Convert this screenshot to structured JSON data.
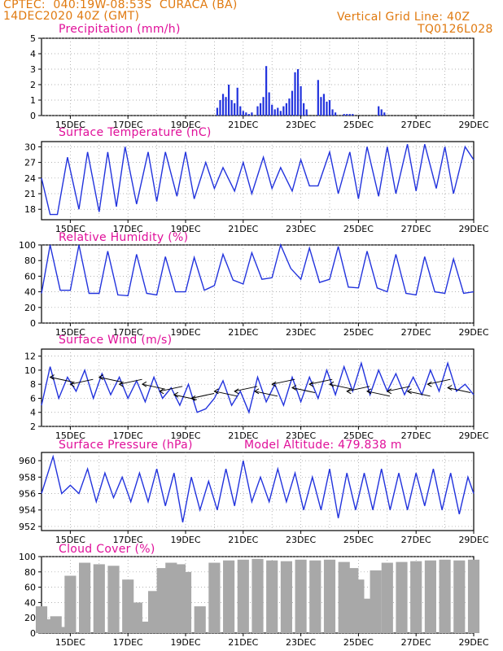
{
  "header": {
    "line1_left": "CPTEC:  040:19W-08:53S  CURACA (BA)",
    "line1_right": "Vertical Grid Line: 40Z",
    "line2_left": "14DEC2020 40Z (GMT)",
    "line2_right": "TQ0126L028",
    "model_altitude": "Model Altitude: 479.838 m"
  },
  "colors": {
    "header": "#e07a10",
    "title": "#e0109a",
    "line": "#2233dd",
    "bars": "#2233dd",
    "cloud": "#a8a8a8",
    "arrows": "#000000"
  },
  "x_tick_labels": [
    "15DEC",
    "17DEC",
    "19DEC",
    "21DEC",
    "23DEC",
    "25DEC",
    "27DEC",
    "29DEC"
  ],
  "chart_data": [
    {
      "type": "bar",
      "title": "Precipitation (mm/h)",
      "ylim": [
        0,
        5
      ],
      "yticks": [
        "0",
        "1",
        "2",
        "3",
        "4",
        "5"
      ],
      "x_days": [
        0,
        15
      ],
      "series": [
        {
          "x": [
            6.1,
            6.2,
            6.3,
            6.4,
            6.5,
            6.6,
            6.7,
            6.8,
            6.9,
            7.0,
            7.1,
            7.2,
            7.3,
            7.5,
            7.6,
            7.7,
            7.8,
            7.9,
            8.0,
            8.1,
            8.2,
            8.3,
            8.4,
            8.5,
            8.6,
            8.7,
            8.8,
            8.9,
            9.0,
            9.1,
            9.2,
            9.6,
            9.7,
            9.8,
            9.9,
            10.0,
            10.1,
            10.2,
            10.5,
            10.6,
            10.7,
            10.8,
            11.7,
            11.8,
            11.9
          ],
          "values": [
            0.5,
            1.0,
            1.4,
            1.2,
            2.0,
            1.0,
            0.8,
            1.8,
            0.6,
            0.3,
            0.2,
            0.1,
            0.2,
            0.6,
            0.8,
            1.2,
            3.2,
            1.5,
            0.7,
            0.4,
            0.5,
            0.3,
            0.6,
            0.8,
            1.1,
            1.6,
            2.8,
            3.0,
            1.9,
            0.8,
            0.4,
            2.3,
            1.2,
            1.4,
            0.9,
            1.0,
            0.4,
            0.2,
            0.1,
            0.1,
            0.1,
            0.1,
            0.6,
            0.4,
            0.2
          ]
        }
      ]
    },
    {
      "type": "line",
      "title": "Surface Temperature (nC)",
      "ylim": [
        16,
        31
      ],
      "yticks": [
        "18",
        "21",
        "24",
        "27",
        "30"
      ],
      "series": [
        {
          "name": "",
          "x": [
            0,
            0.3,
            0.55,
            0.9,
            1.3,
            1.6,
            2.0,
            2.3,
            2.6,
            2.9,
            3.3,
            3.7,
            4.0,
            4.3,
            4.7,
            5.0,
            5.3,
            5.7,
            6.0,
            6.3,
            6.7,
            7.0,
            7.3,
            7.7,
            8.0,
            8.3,
            8.7,
            9.0,
            9.3,
            9.6,
            10.0,
            10.3,
            10.7,
            11.0,
            11.3,
            11.7,
            12.0,
            12.3,
            12.7,
            13.0,
            13.3,
            13.7,
            14.0,
            14.3,
            14.7,
            15.0
          ],
          "y": [
            24,
            17,
            17,
            28,
            18,
            29,
            17.5,
            29,
            18.5,
            30,
            19,
            29,
            19.5,
            29,
            20.5,
            29,
            20,
            27,
            22,
            26,
            21.5,
            27,
            21,
            28,
            22,
            26,
            21.5,
            27.5,
            22.5,
            22.5,
            29,
            21,
            29,
            20,
            30,
            20.5,
            30,
            21,
            30.5,
            21.5,
            30.5,
            22,
            30,
            21,
            30,
            27.5
          ]
        }
      ]
    },
    {
      "type": "line",
      "title": "Relative Humidity (%)",
      "ylim": [
        0,
        100
      ],
      "yticks": [
        "0",
        "20",
        "40",
        "60",
        "80",
        "100"
      ],
      "series": [
        {
          "name": "",
          "x": [
            0,
            0.3,
            0.65,
            1.0,
            1.3,
            1.65,
            2.0,
            2.3,
            2.65,
            3.0,
            3.3,
            3.65,
            4.0,
            4.3,
            4.65,
            5.0,
            5.3,
            5.65,
            6.0,
            6.3,
            6.65,
            7.0,
            7.3,
            7.65,
            8.0,
            8.3,
            8.65,
            9.0,
            9.3,
            9.65,
            10.0,
            10.3,
            10.65,
            11.0,
            11.3,
            11.65,
            12.0,
            12.3,
            12.65,
            13.0,
            13.3,
            13.65,
            14.0,
            14.3,
            14.65,
            15.0
          ],
          "y": [
            38,
            100,
            42,
            42,
            100,
            38,
            38,
            92,
            36,
            35,
            88,
            38,
            36,
            85,
            40,
            40,
            84,
            42,
            48,
            88,
            55,
            50,
            90,
            56,
            58,
            100,
            70,
            56,
            96,
            52,
            56,
            98,
            46,
            45,
            92,
            45,
            40,
            88,
            38,
            36,
            85,
            40,
            38,
            82,
            38,
            40
          ]
        }
      ]
    },
    {
      "type": "line",
      "title": "Surface Wind (m/s)",
      "ylim": [
        2,
        13
      ],
      "yticks": [
        "2",
        "4",
        "6",
        "8",
        "10",
        "12"
      ],
      "series": [
        {
          "name": "",
          "x": [
            0,
            0.3,
            0.6,
            0.9,
            1.2,
            1.5,
            1.8,
            2.1,
            2.4,
            2.7,
            3.0,
            3.3,
            3.6,
            3.9,
            4.2,
            4.5,
            4.8,
            5.1,
            5.4,
            5.7,
            6.0,
            6.3,
            6.6,
            6.9,
            7.2,
            7.5,
            7.8,
            8.1,
            8.4,
            8.7,
            9.0,
            9.3,
            9.6,
            9.9,
            10.2,
            10.5,
            10.8,
            11.1,
            11.4,
            11.7,
            12.0,
            12.3,
            12.6,
            12.9,
            13.2,
            13.5,
            13.8,
            14.1,
            14.4,
            14.7,
            15.0
          ],
          "y": [
            5,
            10.5,
            6,
            9,
            7,
            10,
            6,
            9.5,
            6.5,
            9,
            6,
            8.5,
            5.5,
            9,
            6,
            7.5,
            5,
            8,
            4,
            4.5,
            6,
            8.5,
            5,
            7,
            4,
            9,
            5.5,
            8,
            5,
            9,
            5.5,
            9,
            6,
            10,
            6.5,
            10.5,
            7,
            11,
            6.5,
            10,
            7,
            9.5,
            6.5,
            9,
            6.5,
            10,
            7,
            11,
            7,
            8,
            6.5
          ]
        }
      ],
      "wind_vectors": {
        "x": [
          0.3,
          1.0,
          2.0,
          2.7,
          3.5,
          4.1,
          4.6,
          5.2,
          6.0,
          6.7,
          7.4,
          8.0,
          8.7,
          9.3,
          10.0,
          10.6,
          11.3,
          12.0,
          12.7,
          13.4,
          14.1
        ],
        "speed": [
          9,
          8,
          9,
          8,
          8,
          7,
          6.5,
          6,
          7,
          7,
          7,
          8,
          7.5,
          8,
          8,
          7,
          7,
          7,
          7,
          8,
          7.5
        ]
      }
    },
    {
      "type": "line",
      "title": "Surface Pressure (hPa)",
      "ylim": [
        951.5,
        961
      ],
      "yticks": [
        "952",
        "954",
        "956",
        "958",
        "960"
      ],
      "series": [
        {
          "name": "",
          "x": [
            0,
            0.4,
            0.7,
            1.0,
            1.3,
            1.6,
            1.9,
            2.2,
            2.5,
            2.8,
            3.1,
            3.4,
            3.7,
            4.0,
            4.3,
            4.6,
            4.9,
            5.2,
            5.5,
            5.8,
            6.1,
            6.4,
            6.7,
            7.0,
            7.3,
            7.6,
            7.9,
            8.2,
            8.5,
            8.8,
            9.1,
            9.4,
            9.7,
            10.0,
            10.3,
            10.6,
            10.9,
            11.2,
            11.5,
            11.8,
            12.1,
            12.4,
            12.7,
            13.0,
            13.3,
            13.6,
            13.9,
            14.2,
            14.5,
            14.8,
            15.0
          ],
          "y": [
            956,
            960.5,
            956,
            957,
            956,
            959,
            955,
            958.5,
            955.5,
            958,
            955,
            958.5,
            955,
            959,
            954.5,
            958.5,
            952.5,
            958,
            954,
            957.5,
            954,
            959,
            954.5,
            960,
            955,
            958,
            955,
            959,
            955,
            958.5,
            954,
            958,
            954,
            959,
            953,
            958.5,
            954,
            958.5,
            954,
            959,
            954,
            958.5,
            954,
            958.5,
            954.5,
            959,
            954,
            958.5,
            953.5,
            958,
            956
          ]
        }
      ]
    },
    {
      "type": "bar",
      "title": "Cloud Cover (%)",
      "ylim": [
        0,
        100
      ],
      "yticks": [
        "0",
        "20",
        "40",
        "60",
        "80",
        "100"
      ],
      "series": [
        {
          "name": "",
          "x": [
            0,
            0.3,
            0.5,
            0.8,
            1.0,
            1.5,
            2.0,
            2.5,
            3.0,
            3.3,
            3.6,
            3.9,
            4.2,
            4.5,
            4.8,
            5.0,
            5.5,
            6.0,
            6.5,
            7.0,
            7.5,
            8.0,
            8.5,
            9.0,
            9.5,
            10.0,
            10.5,
            10.8,
            11.0,
            11.3,
            11.6,
            12.0,
            12.5,
            13.0,
            13.5,
            14.0,
            14.5,
            15.0
          ],
          "values": [
            35,
            18,
            22,
            8,
            75,
            92,
            90,
            88,
            70,
            40,
            15,
            55,
            85,
            92,
            90,
            80,
            35,
            92,
            95,
            96,
            97,
            95,
            94,
            96,
            95,
            96,
            93,
            85,
            70,
            45,
            82,
            92,
            93,
            94,
            95,
            96,
            95,
            96
          ]
        }
      ]
    }
  ]
}
